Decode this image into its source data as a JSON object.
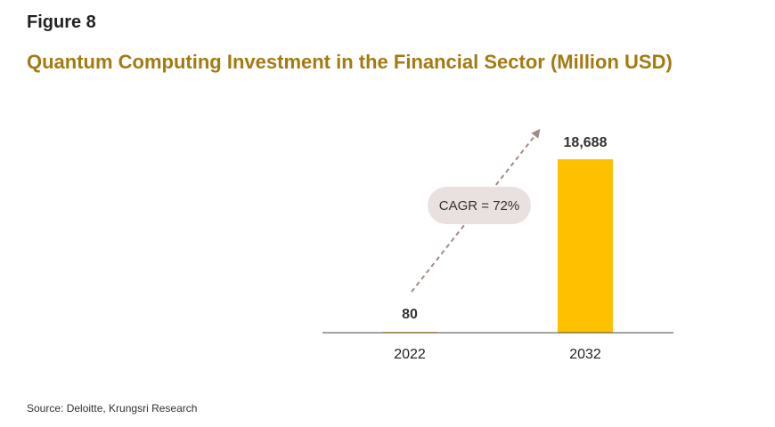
{
  "figure_label": "Figure 8",
  "title": "Quantum Computing Investment in the Financial Sector (Million USD)",
  "source": "Source: Deloitte, Krungsri Research",
  "colors": {
    "title": "#A47A10",
    "bar": "#FFC000",
    "arrow": "#A38A86",
    "callout_bg": "#E9E1DF"
  },
  "chart_data": {
    "type": "bar",
    "title": "Quantum Computing Investment in the Financial Sector (Million USD)",
    "categories": [
      "2022",
      "2032"
    ],
    "values": [
      80,
      18688
    ],
    "data_labels": [
      "80",
      "18,688"
    ],
    "ylim": [
      0,
      18688
    ],
    "grid": false,
    "legend": "none",
    "annotation": "CAGR = 72%"
  }
}
